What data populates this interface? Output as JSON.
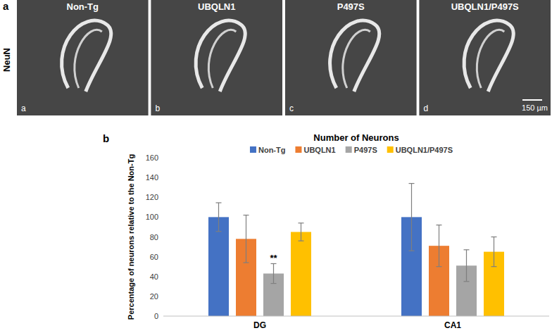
{
  "figure": {
    "panel_a": {
      "label": "a",
      "stain": "NeuN",
      "images": [
        {
          "title": "Non-Tg",
          "letter": "a"
        },
        {
          "title": "UBQLN1",
          "letter": "b"
        },
        {
          "title": "P497S",
          "letter": "c"
        },
        {
          "title": "UBQLN1/P497S",
          "letter": "d"
        }
      ],
      "scale_bar": "150 µm"
    },
    "panel_b": {
      "label": "b"
    }
  },
  "chart_data": {
    "type": "bar",
    "title": "Number of Neurons",
    "y_label": "Percentage of neurons relative to the Non-Tg",
    "categories": [
      "DG",
      "CA1"
    ],
    "series": [
      {
        "name": "Non-Tg",
        "color": "#4472c4",
        "values": [
          100,
          100
        ],
        "errors": [
          14.5,
          34
        ]
      },
      {
        "name": "UBQLN1",
        "color": "#ed7d31",
        "values": [
          78,
          71
        ],
        "errors": [
          24,
          21
        ]
      },
      {
        "name": "P497S",
        "color": "#a5a5a5",
        "values": [
          43,
          51
        ],
        "errors": [
          10,
          16
        ]
      },
      {
        "name": "UBQLN1/P497S",
        "color": "#ffc000",
        "values": [
          85,
          65
        ],
        "errors": [
          9,
          15
        ]
      }
    ],
    "ylim": [
      0,
      160
    ],
    "yticks": [
      0,
      20,
      40,
      60,
      80,
      100,
      120,
      140,
      160
    ],
    "grid": false,
    "legend": "top",
    "annotations": [
      {
        "text": "**",
        "series": 2,
        "category": 0
      }
    ]
  }
}
